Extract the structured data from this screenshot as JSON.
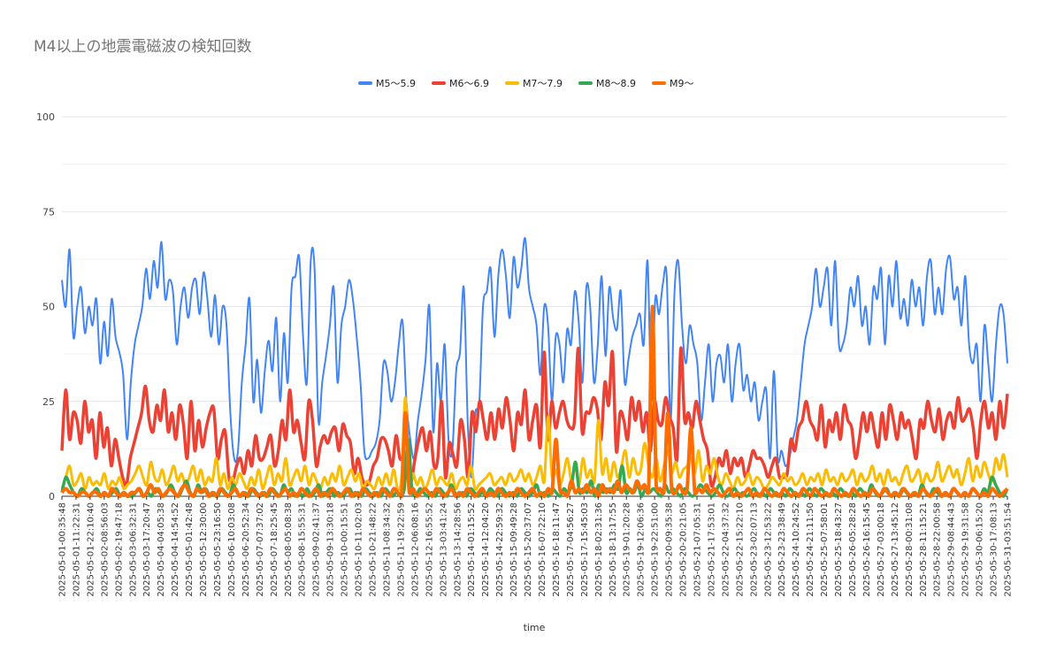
{
  "chart_data": {
    "type": "line",
    "title": "M4以上の地震電磁波の検知回数",
    "xlabel": "time",
    "ylabel": "",
    "ylim": [
      0,
      100
    ],
    "yticks": [
      0,
      25,
      50,
      75,
      100
    ],
    "grid": true,
    "legend_position": "top",
    "x_tick_labels": [
      "2025-05-01-00:35:48",
      "2025-05-01-11:22:31",
      "2025-05-01-22:10:40",
      "2025-05-02-08:56:03",
      "2025-05-02-19:47:18",
      "2025-05-03-06:32:31",
      "2025-05-03-17:20:47",
      "2025-05-04-04:05:38",
      "2025-05-04-14:54:52",
      "2025-05-05-01:42:48",
      "2025-05-05-12:30:00",
      "2025-05-05-23:16:50",
      "2025-05-06-10:03:08",
      "2025-05-06-20:52:34",
      "2025-05-07-07:37:02",
      "2025-05-07-18:25:45",
      "2025-05-08-05:08:38",
      "2025-05-08-15:55:31",
      "2025-05-09-02:41:37",
      "2025-05-09-13:30:18",
      "2025-05-10-00:15:51",
      "2025-05-10-11:02:03",
      "2025-05-10-21:48:22",
      "2025-05-11-08:34:32",
      "2025-05-11-19:22:59",
      "2025-05-12-06:08:16",
      "2025-05-12-16:55:52",
      "2025-05-13-03:41:24",
      "2025-05-13-14:28:56",
      "2025-05-14-01:15:52",
      "2025-05-14-12:04:20",
      "2025-05-14-22:59:32",
      "2025-05-15-09:49:28",
      "2025-05-15-20:37:07",
      "2025-05-16-07:22:10",
      "2025-05-16-18:11:47",
      "2025-05-17-04:56:27",
      "2025-05-17-15:45:03",
      "2025-05-18-02:31:36",
      "2025-05-18-13:17:55",
      "2025-05-19-01:20:28",
      "2025-05-19-12:06:36",
      "2025-05-19-22:51:00",
      "2025-05-20-09:35:38",
      "2025-05-20-20:21:05",
      "2025-05-21-07:05:31",
      "2025-05-21-17:53:01",
      "2025-05-22-04:37:32",
      "2025-05-22-15:22:10",
      "2025-05-23-02:07:13",
      "2025-05-23-12:53:22",
      "2025-05-23-23:38:49",
      "2025-05-24-10:24:52",
      "2025-05-24-21:11:50",
      "2025-05-25-07:58:01",
      "2025-05-25-18:43:27",
      "2025-05-26-05:28:28",
      "2025-05-26-16:15:45",
      "2025-05-27-03:00:18",
      "2025-05-27-13:45:12",
      "2025-05-28-00:31:08",
      "2025-05-28-11:15:21",
      "2025-05-28-22:00:58",
      "2025-05-29-08:44:43",
      "2025-05-29-19:31:58",
      "2025-05-30-06:15:20",
      "2025-05-30-17:08:13",
      "2025-05-31-03:51:54"
    ],
    "series": [
      {
        "name": "M5〜5.9",
        "color": "#4285F4",
        "values": [
          57,
          50,
          65,
          42,
          50,
          55,
          43,
          50,
          45,
          52,
          35,
          46,
          37,
          52,
          42,
          38,
          32,
          15,
          30,
          40,
          45,
          50,
          60,
          52,
          62,
          55,
          67,
          52,
          57,
          54,
          40,
          50,
          55,
          47,
          55,
          57,
          48,
          59,
          52,
          42,
          53,
          40,
          50,
          45,
          22,
          10,
          12,
          30,
          40,
          52,
          25,
          36,
          22,
          33,
          41,
          33,
          47,
          25,
          43,
          30,
          55,
          58,
          63,
          42,
          30,
          62,
          60,
          20,
          30,
          37,
          45,
          55,
          30,
          45,
          50,
          57,
          52,
          42,
          30,
          12,
          10,
          12,
          14,
          20,
          35,
          33,
          25,
          30,
          40,
          46,
          25,
          15,
          10,
          20,
          27,
          36,
          50,
          17,
          35,
          25,
          40,
          15,
          12,
          33,
          38,
          55,
          20,
          5,
          22,
          24,
          50,
          54,
          60,
          42,
          58,
          65,
          58,
          47,
          63,
          55,
          60,
          68,
          55,
          50,
          45,
          32,
          50,
          45,
          25,
          42,
          40,
          30,
          44,
          40,
          54,
          46,
          30,
          55,
          50,
          30,
          40,
          58,
          37,
          55,
          47,
          44,
          54,
          30,
          36,
          42,
          45,
          48,
          40,
          62,
          25,
          52,
          48,
          56,
          58,
          20,
          53,
          62,
          45,
          35,
          45,
          40,
          35,
          20,
          30,
          40,
          25,
          35,
          37,
          30,
          40,
          25,
          35,
          40,
          28,
          32,
          25,
          30,
          20,
          25,
          28,
          10,
          33,
          10,
          12,
          8,
          10,
          15,
          20,
          30,
          40,
          45,
          50,
          60,
          50,
          55,
          60,
          45,
          62,
          40,
          40,
          45,
          55,
          50,
          58,
          45,
          50,
          40,
          55,
          52,
          60,
          40,
          58,
          50,
          62,
          47,
          52,
          45,
          57,
          50,
          55,
          45,
          58,
          62,
          48,
          55,
          48,
          60,
          63,
          52,
          55,
          45,
          58,
          40,
          35,
          40,
          25,
          45,
          35,
          25,
          40,
          50,
          48,
          35
        ]
      },
      {
        "name": "M6〜6.9",
        "color": "#EA4335",
        "values": [
          12,
          28,
          15,
          22,
          20,
          14,
          25,
          17,
          20,
          10,
          22,
          13,
          18,
          8,
          15,
          10,
          5,
          3,
          10,
          14,
          18,
          22,
          29,
          20,
          17,
          24,
          20,
          28,
          17,
          22,
          15,
          24,
          19,
          10,
          25,
          12,
          20,
          13,
          18,
          22,
          23,
          10,
          15,
          17,
          5,
          4,
          8,
          10,
          6,
          12,
          8,
          16,
          10,
          10,
          13,
          16,
          8,
          12,
          20,
          15,
          28,
          17,
          20,
          14,
          10,
          25,
          20,
          8,
          13,
          16,
          14,
          17,
          18,
          12,
          19,
          16,
          14,
          6,
          10,
          5,
          3,
          4,
          8,
          10,
          15,
          15,
          12,
          8,
          16,
          10,
          10,
          5,
          4,
          10,
          15,
          18,
          12,
          17,
          8,
          10,
          25,
          5,
          14,
          11,
          8,
          20,
          15,
          5,
          22,
          17,
          25,
          20,
          15,
          22,
          15,
          23,
          18,
          26,
          20,
          12,
          22,
          19,
          28,
          15,
          20,
          24,
          13,
          38,
          15,
          25,
          18,
          22,
          25,
          20,
          18,
          20,
          39,
          17,
          22,
          22,
          26,
          23,
          15,
          30,
          24,
          38,
          12,
          22,
          20,
          15,
          26,
          20,
          25,
          17,
          22,
          12,
          25,
          20,
          19,
          26,
          21,
          18,
          10,
          39,
          20,
          22,
          18,
          25,
          20,
          15,
          12,
          3,
          5,
          10,
          8,
          12,
          6,
          10,
          8,
          10,
          5,
          8,
          12,
          10,
          10,
          8,
          5,
          8,
          10,
          5,
          5,
          6,
          15,
          12,
          18,
          20,
          25,
          20,
          18,
          15,
          24,
          13,
          20,
          17,
          22,
          15,
          24,
          20,
          18,
          10,
          15,
          22,
          17,
          22,
          17,
          13,
          22,
          15,
          24,
          20,
          15,
          22,
          18,
          20,
          15,
          10,
          20,
          18,
          25,
          20,
          17,
          23,
          15,
          20,
          22,
          18,
          26,
          20,
          21,
          23,
          18,
          10,
          20,
          25,
          18,
          22,
          15,
          25,
          18,
          27
        ]
      },
      {
        "name": "M7〜7.9",
        "color": "#FBBC04",
        "values": [
          2,
          5,
          8,
          3,
          4,
          6,
          2,
          5,
          3,
          4,
          3,
          6,
          2,
          4,
          3,
          5,
          2,
          3,
          4,
          6,
          8,
          5,
          3,
          9,
          5,
          4,
          7,
          3,
          5,
          8,
          4,
          6,
          3,
          5,
          8,
          4,
          7,
          3,
          5,
          4,
          10,
          3,
          6,
          2,
          5,
          3,
          6,
          4,
          2,
          5,
          3,
          7,
          2,
          5,
          8,
          3,
          6,
          4,
          10,
          3,
          5,
          7,
          4,
          8,
          3,
          6,
          4,
          2,
          5,
          3,
          6,
          4,
          8,
          3,
          5,
          7,
          4,
          6,
          2,
          4,
          3,
          2,
          5,
          3,
          6,
          3,
          7,
          2,
          5,
          26,
          4,
          6,
          3,
          5,
          2,
          4,
          7,
          3,
          5,
          4,
          3,
          6,
          2,
          4,
          5,
          3,
          8,
          2,
          3,
          4,
          5,
          6,
          3,
          4,
          5,
          3,
          6,
          4,
          5,
          7,
          4,
          6,
          3,
          5,
          8,
          4,
          21,
          5,
          7,
          3,
          6,
          10,
          4,
          8,
          3,
          10,
          5,
          7,
          4,
          20,
          6,
          10,
          4,
          9,
          5,
          8,
          12,
          5,
          10,
          6,
          7,
          14,
          8,
          5,
          10,
          4,
          8,
          12,
          6,
          9,
          5,
          7,
          8,
          10,
          6,
          12,
          4,
          8,
          6,
          10,
          5,
          3,
          6,
          4,
          2,
          5,
          3,
          4,
          6,
          3,
          5,
          4,
          2,
          3,
          5,
          4,
          3,
          6,
          4,
          5,
          3,
          4,
          6,
          3,
          5,
          4,
          6,
          3,
          7,
          4,
          5,
          3,
          6,
          4,
          5,
          7,
          3,
          6,
          4,
          5,
          8,
          4,
          6,
          3,
          7,
          4,
          5,
          3,
          6,
          8,
          4,
          5,
          7,
          3,
          6,
          4,
          5,
          9,
          4,
          6,
          8,
          5,
          7,
          3,
          6,
          10,
          4,
          8,
          5,
          9,
          6,
          4,
          10,
          7,
          11,
          5
        ]
      },
      {
        "name": "M8〜8.9",
        "color": "#34A853",
        "values": [
          1,
          5,
          3,
          1,
          0,
          2,
          1,
          0,
          1,
          2,
          0,
          1,
          0,
          1,
          2,
          0,
          1,
          0,
          0,
          1,
          2,
          0,
          1,
          0,
          2,
          1,
          0,
          1,
          3,
          1,
          0,
          2,
          4,
          1,
          0,
          3,
          1,
          2,
          0,
          1,
          0,
          2,
          1,
          0,
          3,
          1,
          0,
          1,
          0,
          2,
          1,
          0,
          1,
          0,
          2,
          1,
          0,
          3,
          1,
          2,
          0,
          1,
          0,
          2,
          0,
          1,
          3,
          0,
          1,
          2,
          0,
          1,
          0,
          1,
          2,
          0,
          1,
          0,
          2,
          1,
          0,
          1,
          0,
          2,
          1,
          0,
          1,
          0,
          2,
          15,
          1,
          0,
          2,
          1,
          0,
          1,
          0,
          2,
          1,
          0,
          3,
          1,
          0,
          1,
          0,
          2,
          1,
          0,
          1,
          0,
          2,
          1,
          0,
          2,
          1,
          0,
          1,
          0,
          2,
          1,
          0,
          1,
          3,
          0,
          1,
          0,
          2,
          1,
          0,
          2,
          1,
          3,
          9,
          1,
          2,
          1,
          4,
          0,
          3,
          1,
          2,
          1,
          3,
          2,
          8,
          1,
          2,
          1,
          3,
          0,
          2,
          1,
          2,
          1,
          0,
          3,
          1,
          2,
          1,
          0,
          2,
          1,
          0,
          1,
          3,
          2,
          1,
          0,
          1,
          3,
          1,
          0,
          1,
          2,
          0,
          1,
          0,
          1,
          2,
          0,
          1,
          0,
          2,
          1,
          0,
          1,
          0,
          2,
          1,
          0,
          1,
          0,
          2,
          1,
          0,
          2,
          1,
          0,
          1,
          0,
          2,
          1,
          0,
          1,
          0,
          2,
          1,
          0,
          3,
          1,
          0,
          1,
          2,
          0,
          1,
          0,
          2,
          1,
          0,
          1,
          0,
          3,
          1,
          0,
          2,
          1,
          0,
          1,
          0,
          2,
          1,
          0,
          1,
          0,
          2,
          1,
          0,
          2,
          1,
          5,
          3,
          1,
          0,
          2
        ]
      },
      {
        "name": "M9〜",
        "color": "#FF6D01",
        "values": [
          1,
          2,
          1,
          1,
          0,
          1,
          1,
          0,
          1,
          1,
          0,
          1,
          0,
          2,
          1,
          0,
          1,
          0,
          1,
          1,
          2,
          0,
          1,
          3,
          1,
          2,
          0,
          1,
          2,
          1,
          0,
          2,
          3,
          1,
          0,
          2,
          1,
          2,
          0,
          1,
          0,
          2,
          1,
          0,
          1,
          2,
          0,
          1,
          0,
          2,
          1,
          0,
          1,
          0,
          2,
          1,
          0,
          1,
          2,
          0,
          1,
          0,
          2,
          1,
          0,
          1,
          2,
          0,
          1,
          0,
          2,
          1,
          0,
          1,
          2,
          0,
          1,
          0,
          2,
          1,
          0,
          1,
          0,
          2,
          1,
          0,
          2,
          1,
          0,
          22,
          1,
          2,
          0,
          1,
          2,
          1,
          0,
          2,
          1,
          0,
          1,
          2,
          0,
          1,
          0,
          2,
          1,
          0,
          1,
          2,
          0,
          1,
          0,
          2,
          1,
          0,
          1,
          0,
          2,
          1,
          0,
          1,
          2,
          0,
          1,
          0,
          2,
          1,
          15,
          2,
          1,
          0,
          4,
          1,
          2,
          1,
          3,
          1,
          2,
          0,
          3,
          1,
          2,
          1,
          4,
          1,
          3,
          2,
          1,
          4,
          2,
          3,
          1,
          50,
          3,
          2,
          1,
          22,
          2,
          1,
          3,
          1,
          2,
          18,
          1,
          2,
          1,
          3,
          1,
          2,
          1,
          0,
          1,
          2,
          0,
          1,
          0,
          1,
          2,
          0,
          1,
          0,
          2,
          1,
          0,
          1,
          0,
          2,
          1,
          0,
          1,
          0,
          2,
          1,
          0,
          2,
          1,
          0,
          1,
          0,
          2,
          1,
          0,
          1,
          0,
          2,
          1,
          0,
          1,
          0,
          2,
          1,
          0,
          2,
          1,
          0,
          1,
          0,
          2,
          1,
          0,
          1,
          0,
          2,
          1,
          0,
          1,
          2,
          0,
          1,
          0,
          2,
          1,
          0,
          1,
          0,
          2,
          1,
          0,
          1,
          0,
          2,
          1,
          0,
          1,
          2
        ]
      }
    ]
  }
}
